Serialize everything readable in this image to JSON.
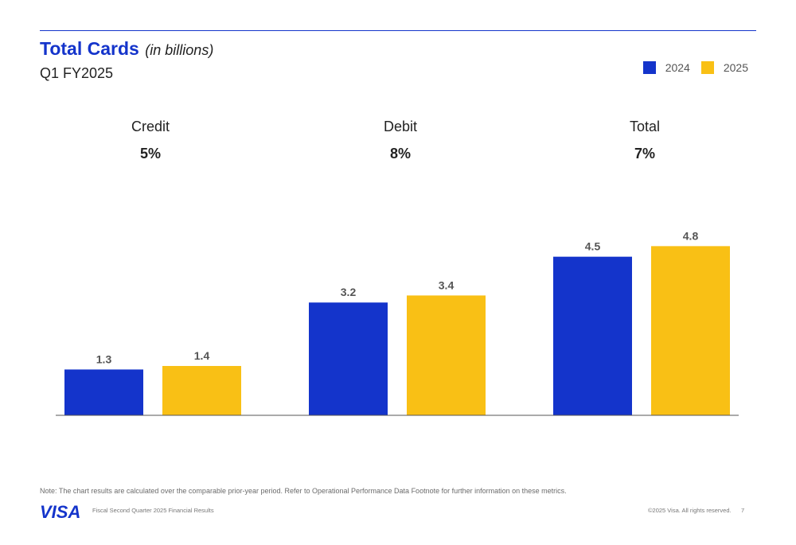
{
  "header": {
    "title": "Total Cards",
    "title_unit": "(in billions)",
    "subtitle": "Q1 FY2025"
  },
  "colors": {
    "accent": "#1434cb",
    "series_2024": "#1434cb",
    "series_2025": "#f9c015"
  },
  "chart_data": {
    "type": "bar",
    "title": "Total Cards (in billions)",
    "subtitle": "Q1 FY2025",
    "xlabel": "",
    "ylabel": "",
    "categories": [
      "Credit",
      "Debit",
      "Total"
    ],
    "category_growth": [
      "5%",
      "8%",
      "7%"
    ],
    "series": [
      {
        "name": "2024",
        "color": "#1434cb",
        "values": [
          1.3,
          3.2,
          4.5
        ]
      },
      {
        "name": "2025",
        "color": "#f9c015",
        "values": [
          1.4,
          3.4,
          4.8
        ]
      }
    ],
    "legend_position": "top-right",
    "grid": false,
    "ylim": [
      0,
      5
    ]
  },
  "footer": {
    "note": "Note: The chart results are calculated over the comparable prior-year period. Refer to Operational Performance Data Footnote for further information on these metrics.",
    "label": "Fiscal Second Quarter 2025 Financial Results",
    "copyright": "©2025 Visa. All rights reserved.",
    "page_number": "7",
    "logo_text": "VISA"
  }
}
